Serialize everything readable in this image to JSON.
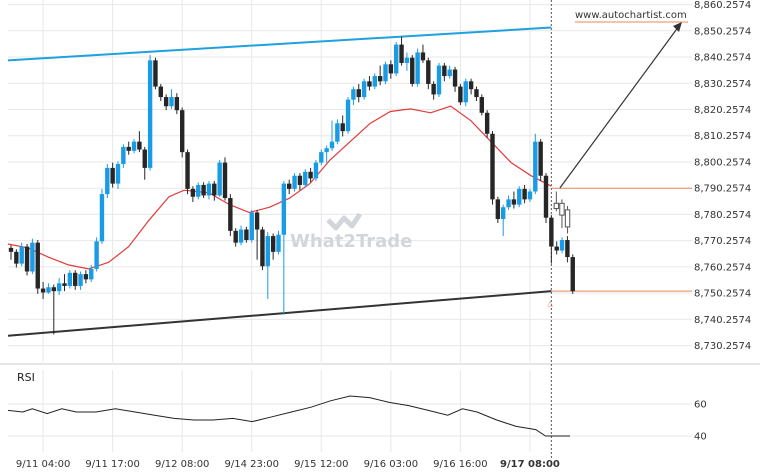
{
  "chart_data": {
    "type": "candlestick",
    "source_label": "www.autochartist.com",
    "watermark": "What2Trade",
    "y_tick_labels": [
      "8,860.2574",
      "8,850.2574",
      "8,840.2574",
      "8,830.2574",
      "8,820.2574",
      "8,810.2574",
      "8,800.2574",
      "8,790.2574",
      "8,780.2574",
      "8,770.2574",
      "8,760.2574",
      "8,750.2574",
      "8,740.2574",
      "8,730.2574"
    ],
    "y_ticks": [
      8860.2574,
      8850.2574,
      8840.2574,
      8830.2574,
      8820.2574,
      8810.2574,
      8800.2574,
      8790.2574,
      8780.2574,
      8770.2574,
      8760.2574,
      8750.2574,
      8740.2574,
      8730.2574
    ],
    "ylim": [
      8724.0,
      8862.0
    ],
    "x_tick_labels": [
      "9/11 04:00",
      "9/11 17:00",
      "9/12 08:00",
      "9/14 23:00",
      "9/15 12:00",
      "9/16 03:00",
      "9/16 16:00",
      "9/17 08:00"
    ],
    "x_tick_index": [
      6,
      19,
      32,
      45,
      58,
      71,
      84,
      97
    ],
    "n_bars": 102,
    "candles": [
      [
        8767.5,
        8766.0,
        8768.5,
        8763.0
      ],
      [
        8766.0,
        8761.5,
        8767.0,
        8760.0
      ],
      [
        8761.5,
        8768.0,
        8769.5,
        8760.5
      ],
      [
        8768.0,
        8758.5,
        8769.0,
        8757.0
      ],
      [
        8758.5,
        8769.5,
        8771.0,
        8757.5
      ],
      [
        8769.5,
        8752.0,
        8770.5,
        8750.0
      ],
      [
        8752.0,
        8750.5,
        8754.5,
        8748.0
      ],
      [
        8750.5,
        8752.5,
        8754.0,
        8750.0
      ],
      [
        8752.5,
        8751.0,
        8753.5,
        8734.5
      ],
      [
        8751.0,
        8754.0,
        8756.0,
        8749.5
      ],
      [
        8754.0,
        8753.0,
        8757.5,
        8751.0
      ],
      [
        8753.0,
        8758.0,
        8759.0,
        8752.0
      ],
      [
        8758.0,
        8753.0,
        8759.0,
        8751.5
      ],
      [
        8753.0,
        8757.5,
        8758.5,
        8751.5
      ],
      [
        8757.5,
        8755.5,
        8759.0,
        8754.0
      ],
      [
        8755.5,
        8759.5,
        8761.0,
        8754.5
      ],
      [
        8759.5,
        8770.0,
        8771.5,
        8758.5
      ],
      [
        8770.0,
        8788.0,
        8790.0,
        8769.0
      ],
      [
        8788.0,
        8798.0,
        8799.5,
        8786.5
      ],
      [
        8798.0,
        8792.0,
        8800.0,
        8790.5
      ],
      [
        8792.0,
        8799.5,
        8800.5,
        8790.0
      ],
      [
        8799.5,
        8806.0,
        8807.0,
        8798.0
      ],
      [
        8806.0,
        8804.5,
        8808.0,
        8803.0
      ],
      [
        8804.5,
        8808.0,
        8809.0,
        8803.5
      ],
      [
        8808.0,
        8805.0,
        8812.0,
        8804.0
      ],
      [
        8805.0,
        8798.0,
        8806.0,
        8793.5
      ],
      [
        8798.0,
        8839.0,
        8841.0,
        8797.0
      ],
      [
        8839.0,
        8829.0,
        8840.0,
        8828.0
      ],
      [
        8829.0,
        8825.0,
        8830.0,
        8823.5
      ],
      [
        8825.0,
        8821.5,
        8826.0,
        8820.0
      ],
      [
        8821.5,
        8825.0,
        8828.0,
        8820.5
      ],
      [
        8825.0,
        8820.0,
        8826.5,
        8818.5
      ],
      [
        8820.0,
        8804.0,
        8821.0,
        8802.0
      ],
      [
        8804.0,
        8790.0,
        8805.0,
        8788.0
      ],
      [
        8790.0,
        8787.0,
        8791.0,
        8785.0
      ],
      [
        8787.0,
        8791.5,
        8792.5,
        8786.0
      ],
      [
        8791.5,
        8787.5,
        8792.5,
        8786.5
      ],
      [
        8787.5,
        8792.0,
        8793.0,
        8786.0
      ],
      [
        8792.0,
        8787.5,
        8793.0,
        8785.5
      ],
      [
        8787.5,
        8800.0,
        8801.0,
        8787.0
      ],
      [
        8800.0,
        8786.5,
        8802.0,
        8785.5
      ],
      [
        8786.5,
        8774.0,
        8788.0,
        8772.0
      ],
      [
        8774.0,
        8769.5,
        8775.0,
        8768.0
      ],
      [
        8769.5,
        8774.5,
        8776.0,
        8768.5
      ],
      [
        8774.5,
        8770.5,
        8775.5,
        8769.5
      ],
      [
        8770.5,
        8781.0,
        8782.0,
        8769.5
      ],
      [
        8781.0,
        8774.5,
        8782.0,
        8763.0
      ],
      [
        8774.5,
        8760.5,
        8775.5,
        8759.0
      ],
      [
        8760.5,
        8772.0,
        8773.5,
        8748.0
      ],
      [
        8772.0,
        8766.0,
        8773.0,
        8763.0
      ],
      [
        8766.0,
        8772.5,
        8774.0,
        8765.0
      ],
      [
        8772.5,
        8792.0,
        8793.0,
        8742.0
      ],
      [
        8792.0,
        8790.0,
        8793.5,
        8788.0
      ],
      [
        8790.0,
        8795.0,
        8796.0,
        8789.0
      ],
      [
        8795.0,
        8791.5,
        8796.0,
        8789.5
      ],
      [
        8791.5,
        8796.5,
        8797.5,
        8790.5
      ],
      [
        8796.5,
        8794.0,
        8798.0,
        8792.5
      ],
      [
        8794.0,
        8800.0,
        8801.0,
        8793.0
      ],
      [
        8800.0,
        8804.0,
        8805.0,
        8799.0
      ],
      [
        8804.0,
        8805.5,
        8806.5,
        8800.0
      ],
      [
        8805.5,
        8808.0,
        8816.0,
        8804.5
      ],
      [
        8808.0,
        8815.0,
        8816.5,
        8807.0
      ],
      [
        8815.0,
        8812.0,
        8818.0,
        8810.0
      ],
      [
        8812.0,
        8824.0,
        8825.0,
        8811.0
      ],
      [
        8824.0,
        8828.0,
        8829.0,
        8822.0
      ],
      [
        8828.0,
        8825.0,
        8830.0,
        8823.0
      ],
      [
        8825.0,
        8831.0,
        8832.0,
        8824.0
      ],
      [
        8831.0,
        8829.0,
        8833.0,
        8827.5
      ],
      [
        8829.0,
        8833.0,
        8834.0,
        8828.0
      ],
      [
        8833.0,
        8831.0,
        8837.0,
        8829.5
      ],
      [
        8831.0,
        8837.5,
        8838.5,
        8830.0
      ],
      [
        8837.5,
        8834.0,
        8839.0,
        8832.0
      ],
      [
        8834.0,
        8845.0,
        8846.0,
        8833.0
      ],
      [
        8845.0,
        8838.0,
        8848.0,
        8837.0
      ],
      [
        8838.0,
        8840.0,
        8842.0,
        8835.0
      ],
      [
        8840.0,
        8830.0,
        8841.0,
        8829.0
      ],
      [
        8830.0,
        8842.0,
        8843.5,
        8829.0
      ],
      [
        8842.0,
        8839.0,
        8845.0,
        8838.0
      ],
      [
        8839.0,
        8830.0,
        8840.0,
        8828.0
      ],
      [
        8830.0,
        8826.0,
        8831.0,
        8824.0
      ],
      [
        8826.0,
        8837.0,
        8838.0,
        8825.0
      ],
      [
        8837.0,
        8833.0,
        8838.0,
        8831.0
      ],
      [
        8833.0,
        8835.5,
        8837.0,
        8832.0
      ],
      [
        8835.5,
        8829.0,
        8836.5,
        8827.0
      ],
      [
        8829.0,
        8823.0,
        8830.0,
        8822.0
      ],
      [
        8823.0,
        8831.0,
        8832.0,
        8821.5
      ],
      [
        8831.0,
        8828.0,
        8832.0,
        8826.0
      ],
      [
        8828.0,
        8825.0,
        8829.0,
        8823.5
      ],
      [
        8825.0,
        8819.0,
        8826.0,
        8818.0
      ],
      [
        8819.0,
        8811.0,
        8820.0,
        8809.5
      ],
      [
        8811.0,
        8786.0,
        8812.0,
        8784.0
      ],
      [
        8786.0,
        8778.5,
        8787.0,
        8777.0
      ],
      [
        8778.5,
        8783.0,
        8784.0,
        8772.0
      ],
      [
        8783.0,
        8786.0,
        8787.5,
        8782.0
      ],
      [
        8786.0,
        8784.0,
        8789.0,
        8782.5
      ],
      [
        8784.0,
        8790.0,
        8791.0,
        8783.0
      ],
      [
        8790.0,
        8786.0,
        8791.5,
        8784.5
      ],
      [
        8786.0,
        8789.0,
        8790.0,
        8785.0
      ],
      [
        8789.0,
        8808.0,
        8811.0,
        8788.0
      ],
      [
        8808.0,
        8795.0,
        8809.0,
        8793.0
      ],
      [
        8795.0,
        8779.0,
        8796.0,
        8777.0
      ],
      [
        8779.0,
        8768.0,
        8780.0,
        8761.5
      ],
      [
        8768.0,
        8766.5,
        8770.0,
        8765.0
      ],
      [
        8766.5,
        8770.5,
        8771.5,
        8765.5
      ],
      [
        8770.5,
        8764.0,
        8772.0,
        8762.0
      ],
      [
        8764.0,
        8751.0,
        8765.0,
        8750.0
      ]
    ],
    "moving_average": [
      [
        0,
        8769
      ],
      [
        4,
        8767.5
      ],
      [
        8,
        8764
      ],
      [
        12,
        8761
      ],
      [
        16,
        8759.5
      ],
      [
        20,
        8762
      ],
      [
        24,
        8768
      ],
      [
        28,
        8778
      ],
      [
        32,
        8787
      ],
      [
        35,
        8789.5
      ],
      [
        40,
        8788.5
      ],
      [
        44,
        8784
      ],
      [
        48,
        8781
      ],
      [
        52,
        8783
      ],
      [
        56,
        8786.5
      ],
      [
        60,
        8792
      ],
      [
        64,
        8801
      ],
      [
        68,
        8808
      ],
      [
        72,
        8815
      ],
      [
        76,
        8819.5
      ],
      [
        80,
        8820.5
      ],
      [
        84,
        8819
      ],
      [
        88,
        8821.5
      ],
      [
        92,
        8816
      ],
      [
        96,
        8808
      ],
      [
        100,
        8800
      ],
      [
        104,
        8795
      ],
      [
        108,
        8791
      ]
    ],
    "resistance_line": {
      "x": [
        0,
        101
      ],
      "y": [
        8839.0,
        8851.5
      ]
    },
    "support_line": {
      "x": [
        0,
        101
      ],
      "y": [
        8734.0,
        8751.0
      ]
    },
    "horizontal_levels": [
      8790.2574,
      8751.0
    ],
    "forecast_arrow": {
      "x": [
        103,
        126
      ],
      "y": [
        8790.0,
        8856.0
      ]
    },
    "current_time_index": 101
  },
  "rsi": {
    "label": "RSI",
    "tick_labels": [
      "60",
      "40"
    ],
    "ticks": [
      60,
      40
    ],
    "ylim": [
      30,
      75
    ],
    "values": [
      [
        0,
        56
      ],
      [
        3,
        55
      ],
      [
        5,
        57
      ],
      [
        8,
        54
      ],
      [
        11,
        57
      ],
      [
        14,
        55
      ],
      [
        18,
        55
      ],
      [
        22,
        57
      ],
      [
        26,
        55
      ],
      [
        30,
        53
      ],
      [
        34,
        51
      ],
      [
        38,
        50
      ],
      [
        42,
        50
      ],
      [
        46,
        51
      ],
      [
        50,
        49
      ],
      [
        54,
        52
      ],
      [
        58,
        55
      ],
      [
        62,
        58
      ],
      [
        66,
        62
      ],
      [
        70,
        65
      ],
      [
        74,
        64
      ],
      [
        78,
        61
      ],
      [
        82,
        59
      ],
      [
        86,
        56
      ],
      [
        90,
        53
      ],
      [
        93,
        57
      ],
      [
        96,
        55
      ],
      [
        100,
        50
      ],
      [
        104,
        46
      ],
      [
        108,
        44
      ],
      [
        110,
        40
      ],
      [
        115,
        40
      ]
    ]
  }
}
